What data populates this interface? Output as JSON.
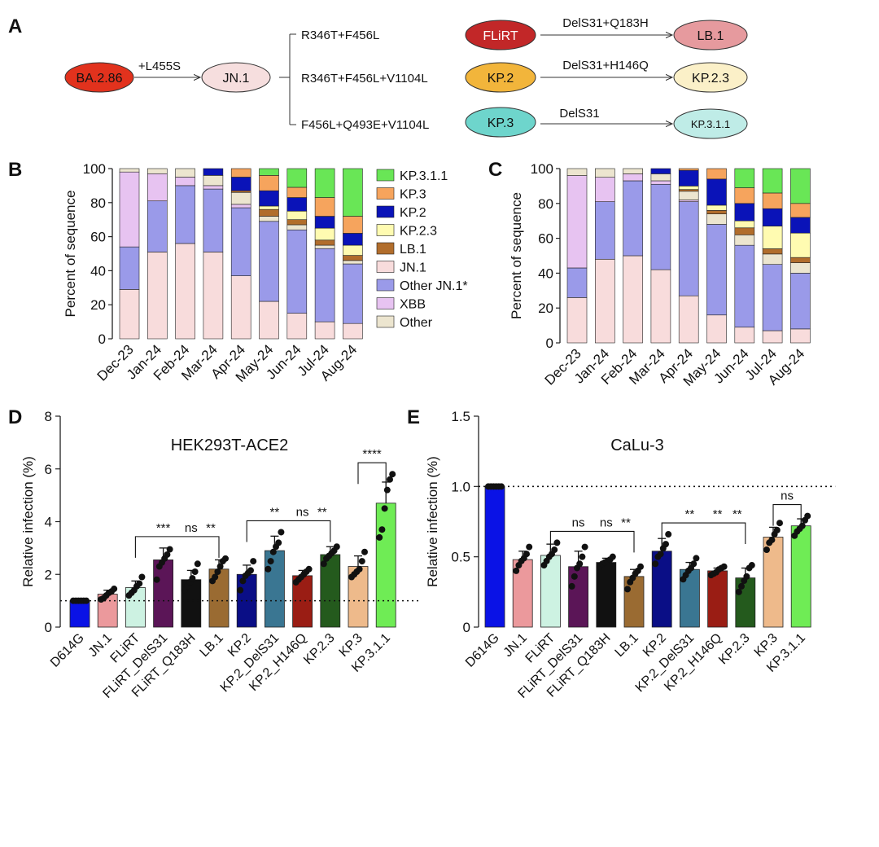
{
  "panel_labels": {
    "a": "A",
    "b": "B",
    "c": "C",
    "d": "D",
    "e": "E"
  },
  "colors": {
    "KP.3.1.1": "#69e656",
    "KP.3": "#f6a45d",
    "KP.2": "#0a13b8",
    "KP.2.3": "#fffbb1",
    "LB.1": "#b16d2c",
    "JN.1": "#f8dcdc",
    "Other JN.1*": "#9a9ae9",
    "XBB": "#e7c3f1",
    "Other": "#ece5cf",
    "BA.2.86": "#e2321d",
    "JN.1_node": "#f6dede",
    "FLiRT": "#c22728",
    "LB.1_node": "#e69a9e",
    "KP.2_node": "#f2b53b",
    "KP.2.3_node": "#fbf0c8",
    "KP.3_node": "#6ed5cc",
    "KP.3.1.1_node": "#bfece7"
  },
  "lineage": {
    "nodes": {
      "ba286": "BA.2.86",
      "jn1": "JN.1",
      "flirt": "FLiRT",
      "kp2": "KP.2",
      "kp3": "KP.3",
      "lb1": "LB.1",
      "kp23": "KP.2.3",
      "kp311": "KP.3.1.1"
    },
    "edges": {
      "ba286_jn1": "+L455S",
      "branch1": "R346T+F456L",
      "branch2": "R346T+F456L+V1104L",
      "branch3": "F456L+Q493E+V1104L",
      "flirt_lb1": "DelS31+Q183H",
      "kp2_kp23": "DelS31+H146Q",
      "kp3_kp311": "DelS31"
    }
  },
  "legend": [
    "KP.3.1.1",
    "KP.3",
    "KP.2",
    "KP.2.3",
    "LB.1",
    "JN.1",
    "Other JN.1*",
    "XBB",
    "Other"
  ],
  "chart_data": [
    {
      "id": "B",
      "type": "bar",
      "stacked": true,
      "ylabel": "Percent of sequence",
      "ylim": [
        0,
        100
      ],
      "yticks": [
        0,
        20,
        40,
        60,
        80,
        100
      ],
      "categories": [
        "Dec-23",
        "Jan-24",
        "Feb-24",
        "Mar-24",
        "Apr-24",
        "May-24",
        "Jun-24",
        "Jul-24",
        "Aug-24"
      ],
      "stack_order": [
        "JN.1",
        "Other JN.1*",
        "XBB",
        "Other",
        "LB.1",
        "KP.2.3",
        "KP.2",
        "KP.3",
        "KP.3.1.1"
      ],
      "series": [
        {
          "name": "JN.1",
          "values": [
            29,
            51,
            56,
            51,
            37,
            22,
            15,
            10,
            9
          ]
        },
        {
          "name": "Other JN.1*",
          "values": [
            25,
            30,
            34,
            37,
            40,
            47,
            49,
            43,
            35
          ]
        },
        {
          "name": "XBB",
          "values": [
            44,
            16,
            5,
            2,
            2,
            0,
            0,
            0,
            0
          ]
        },
        {
          "name": "Other",
          "values": [
            2,
            3,
            5,
            6,
            7,
            3,
            3,
            2,
            2
          ]
        },
        {
          "name": "LB.1",
          "values": [
            0,
            0,
            0,
            0,
            1,
            4,
            3,
            3,
            3
          ]
        },
        {
          "name": "KP.2.3",
          "values": [
            0,
            0,
            0,
            0,
            0,
            2,
            5,
            7,
            6
          ]
        },
        {
          "name": "KP.2",
          "values": [
            0,
            0,
            0,
            4,
            8,
            9,
            8,
            7,
            7
          ]
        },
        {
          "name": "KP.3",
          "values": [
            0,
            0,
            0,
            0,
            5,
            9,
            6,
            11,
            10
          ]
        },
        {
          "name": "KP.3.1.1",
          "values": [
            0,
            0,
            0,
            0,
            0,
            4,
            11,
            17,
            28
          ]
        }
      ]
    },
    {
      "id": "C",
      "type": "bar",
      "stacked": true,
      "ylabel": "Percent of sequence",
      "ylim": [
        0,
        100
      ],
      "yticks": [
        0,
        20,
        40,
        60,
        80,
        100
      ],
      "categories": [
        "Dec-23",
        "Jan-24",
        "Feb-24",
        "Mar-24",
        "Apr-24",
        "May-24",
        "Jun-24",
        "Jul-24",
        "Aug-24"
      ],
      "stack_order": [
        "JN.1",
        "Other JN.1*",
        "XBB",
        "Other",
        "LB.1",
        "KP.2.3",
        "KP.2",
        "KP.3",
        "KP.3.1.1"
      ],
      "series": [
        {
          "name": "JN.1",
          "values": [
            26,
            48,
            50,
            42,
            27,
            16,
            9,
            7,
            8
          ]
        },
        {
          "name": "Other JN.1*",
          "values": [
            17,
            33,
            43,
            49,
            54,
            52,
            47,
            38,
            32
          ]
        },
        {
          "name": "XBB",
          "values": [
            53,
            14,
            4,
            2,
            1,
            0,
            0,
            0,
            0
          ]
        },
        {
          "name": "Other",
          "values": [
            4,
            5,
            3,
            4,
            5,
            6,
            6,
            6,
            6
          ]
        },
        {
          "name": "LB.1",
          "values": [
            0,
            0,
            0,
            0,
            1,
            2,
            4,
            3,
            3
          ]
        },
        {
          "name": "KP.2.3",
          "values": [
            0,
            0,
            0,
            0,
            2,
            3,
            4,
            13,
            14
          ]
        },
        {
          "name": "KP.2",
          "values": [
            0,
            0,
            0,
            3,
            9,
            15,
            10,
            10,
            9
          ]
        },
        {
          "name": "KP.3",
          "values": [
            0,
            0,
            0,
            0,
            1,
            6,
            9,
            9,
            8
          ]
        },
        {
          "name": "KP.3.1.1",
          "values": [
            0,
            0,
            0,
            0,
            0,
            0,
            11,
            14,
            20
          ]
        }
      ]
    },
    {
      "id": "D",
      "type": "bar",
      "title": "HEK293T-ACE2",
      "ylabel": "Relative infection (%)",
      "ylim": [
        0,
        8
      ],
      "yticks": [
        0,
        2,
        4,
        6,
        8
      ],
      "reference_line": 1,
      "categories": [
        "D614G",
        "JN.1",
        "FLiRT",
        "FLiRT_DelS31",
        "FLiRT_Q183H",
        "LB.1",
        "KP.2",
        "KP.2_DelS31",
        "KP.2_H146Q",
        "KP.2.3",
        "KP.3",
        "KP.3.1.1"
      ],
      "values": [
        1.0,
        1.25,
        1.5,
        2.55,
        1.8,
        2.2,
        2.0,
        2.9,
        1.95,
        2.75,
        2.3,
        4.7
      ],
      "errors": [
        0,
        0.15,
        0.25,
        0.45,
        0.35,
        0.35,
        0.35,
        0.55,
        0.2,
        0.3,
        0.4,
        0.8
      ],
      "bar_colors": [
        "#0a12e6",
        "#eb999c",
        "#cdf2e2",
        "#5b1557",
        "#111111",
        "#9a6b32",
        "#0a0e86",
        "#3a7692",
        "#9a1d14",
        "#245a1d",
        "#eeba8b",
        "#6fec55"
      ],
      "points": [
        [
          1,
          1,
          1,
          1,
          1,
          1
        ],
        [
          1.05,
          1.1,
          1.2,
          1.3,
          1.35,
          1.45
        ],
        [
          1.2,
          1.3,
          1.4,
          1.55,
          1.65,
          1.9
        ],
        [
          1.8,
          2.3,
          2.45,
          2.6,
          2.75,
          2.95
        ],
        [
          1.4,
          1.55,
          1.7,
          1.85,
          2.1,
          2.4
        ],
        [
          1.75,
          1.9,
          2.1,
          2.3,
          2.5,
          2.6
        ],
        [
          1.4,
          1.75,
          1.95,
          2.05,
          2.15,
          2.5
        ],
        [
          2.2,
          2.5,
          2.85,
          3.05,
          3.2,
          3.6
        ],
        [
          1.7,
          1.8,
          1.9,
          2.0,
          2.1,
          2.2
        ],
        [
          2.4,
          2.6,
          2.7,
          2.8,
          2.9,
          3.05
        ],
        [
          1.9,
          2.0,
          2.1,
          2.2,
          2.5,
          2.85
        ],
        [
          3.4,
          3.7,
          4.5,
          5.2,
          5.6,
          5.8
        ]
      ],
      "significance": [
        {
          "from": 2,
          "to": 3,
          "label": "***"
        },
        {
          "from": 2,
          "to": 4,
          "label": "ns"
        },
        {
          "from": 2,
          "to": 5,
          "label": "**"
        },
        {
          "from": 6,
          "to": 7,
          "label": "**"
        },
        {
          "from": 6,
          "to": 8,
          "label": "ns"
        },
        {
          "from": 6,
          "to": 9,
          "label": "**"
        },
        {
          "from": 10,
          "to": 11,
          "label": "****"
        }
      ]
    },
    {
      "id": "E",
      "type": "bar",
      "title": "CaLu-3",
      "ylabel": "Relative infection (%)",
      "ylim": [
        0,
        1.5
      ],
      "yticks": [
        0,
        0.5,
        1.0,
        1.5
      ],
      "ytick_labels": [
        "0",
        "0.5",
        "1.0",
        "1.5"
      ],
      "reference_line": 1,
      "categories": [
        "D614G",
        "JN.1",
        "FLiRT",
        "FLiRT_DelS31",
        "FLiRT_Q183H",
        "LB.1",
        "KP.2",
        "KP.2_DelS31",
        "KP.2_H146Q",
        "KP.2.3",
        "KP.3",
        "KP.3.1.1"
      ],
      "values": [
        1.0,
        0.48,
        0.51,
        0.43,
        0.46,
        0.36,
        0.54,
        0.41,
        0.4,
        0.35,
        0.64,
        0.72
      ],
      "errors": [
        0,
        0.06,
        0.08,
        0.11,
        0.03,
        0.05,
        0.09,
        0.05,
        0.02,
        0.07,
        0.07,
        0.05
      ],
      "bar_colors": [
        "#0a12e6",
        "#eb999c",
        "#cdf2e2",
        "#5b1557",
        "#111111",
        "#9a6b32",
        "#0a0e86",
        "#3a7692",
        "#9a1d14",
        "#245a1d",
        "#eeba8b",
        "#6fec55"
      ],
      "points": [
        [
          1,
          1,
          1,
          1,
          1,
          1
        ],
        [
          0.4,
          0.44,
          0.47,
          0.49,
          0.52,
          0.57
        ],
        [
          0.44,
          0.47,
          0.5,
          0.52,
          0.55,
          0.6
        ],
        [
          0.29,
          0.36,
          0.42,
          0.45,
          0.5,
          0.57
        ],
        [
          0.43,
          0.45,
          0.46,
          0.47,
          0.48,
          0.5
        ],
        [
          0.27,
          0.32,
          0.35,
          0.38,
          0.4,
          0.43
        ],
        [
          0.45,
          0.5,
          0.52,
          0.56,
          0.59,
          0.66
        ],
        [
          0.34,
          0.37,
          0.4,
          0.42,
          0.45,
          0.49
        ],
        [
          0.37,
          0.38,
          0.39,
          0.41,
          0.42,
          0.43
        ],
        [
          0.25,
          0.29,
          0.33,
          0.36,
          0.42,
          0.44
        ],
        [
          0.55,
          0.6,
          0.62,
          0.66,
          0.69,
          0.74
        ],
        [
          0.65,
          0.68,
          0.7,
          0.72,
          0.76,
          0.79
        ]
      ],
      "significance": [
        {
          "from": 2,
          "to": 3,
          "label": "ns"
        },
        {
          "from": 2,
          "to": 4,
          "label": "ns"
        },
        {
          "from": 2,
          "to": 5,
          "label": "**"
        },
        {
          "from": 6,
          "to": 7,
          "label": "**"
        },
        {
          "from": 6,
          "to": 8,
          "label": "**"
        },
        {
          "from": 6,
          "to": 9,
          "label": "**"
        },
        {
          "from": 10,
          "to": 11,
          "label": "ns"
        }
      ]
    }
  ]
}
